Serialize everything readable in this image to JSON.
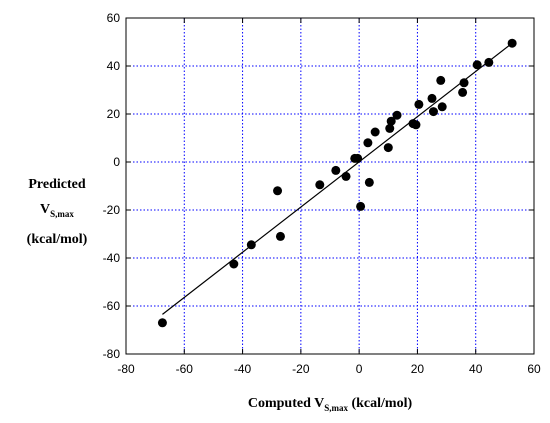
{
  "chart_data": {
    "type": "scatter",
    "title": "",
    "xlabel": {
      "prefix": "Computed V",
      "sub": "S,max",
      "suffix": " (kcal/mol)"
    },
    "ylabel": {
      "line1": "Predicted",
      "main": "V",
      "sub": "S,max",
      "line3": "(kcal/mol)"
    },
    "xlim": [
      -80,
      60
    ],
    "ylim": [
      -80,
      60
    ],
    "xticks": [
      "-80",
      "-60",
      "-40",
      "-20",
      "0",
      "20",
      "40",
      "60"
    ],
    "yticks": [
      "60",
      "40",
      "20",
      "0",
      "-20",
      "-40",
      "-60",
      "-80"
    ],
    "grid": true,
    "grid_color": "#0000ff",
    "fit_line": {
      "x": [
        -67.5,
        52.5
      ],
      "y": [
        -63.5,
        49.5
      ]
    },
    "points": [
      {
        "x": -67.5,
        "y": -67
      },
      {
        "x": -43,
        "y": -42.5
      },
      {
        "x": -37,
        "y": -34.5
      },
      {
        "x": -28,
        "y": -12
      },
      {
        "x": -27,
        "y": -31
      },
      {
        "x": -13.5,
        "y": -9.5
      },
      {
        "x": -8,
        "y": -3.5
      },
      {
        "x": -4.5,
        "y": -6
      },
      {
        "x": -1.5,
        "y": 1.5
      },
      {
        "x": -0.5,
        "y": 1.5
      },
      {
        "x": 0.5,
        "y": -18.5
      },
      {
        "x": 3,
        "y": 8
      },
      {
        "x": 3.5,
        "y": -8.5
      },
      {
        "x": 5.5,
        "y": 12.5
      },
      {
        "x": 10,
        "y": 6
      },
      {
        "x": 10.5,
        "y": 14
      },
      {
        "x": 11,
        "y": 17
      },
      {
        "x": 13,
        "y": 19.5
      },
      {
        "x": 18.5,
        "y": 16
      },
      {
        "x": 19.5,
        "y": 15.5
      },
      {
        "x": 20.5,
        "y": 24
      },
      {
        "x": 25,
        "y": 26.5
      },
      {
        "x": 25.5,
        "y": 21
      },
      {
        "x": 28,
        "y": 34
      },
      {
        "x": 28.5,
        "y": 23
      },
      {
        "x": 35.5,
        "y": 29
      },
      {
        "x": 36,
        "y": 33
      },
      {
        "x": 40.5,
        "y": 40.5
      },
      {
        "x": 44.5,
        "y": 41.5
      },
      {
        "x": 52.5,
        "y": 49.5
      }
    ]
  }
}
